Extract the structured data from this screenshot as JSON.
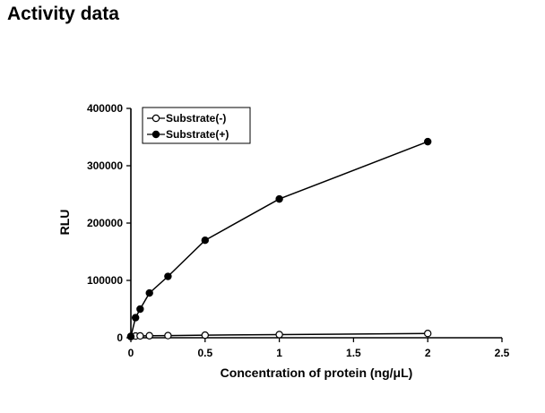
{
  "page": {
    "title": "Activity data"
  },
  "chart_data": {
    "type": "line",
    "title": "",
    "xlabel": "Concentration of protein (ng/μL)",
    "ylabel": "RLU",
    "xlim": [
      0,
      2.5
    ],
    "ylim": [
      0,
      400000
    ],
    "xticks": [
      0,
      0.5,
      1,
      1.5,
      2,
      2.5
    ],
    "xtick_labels": [
      "0",
      "0.5",
      "1",
      "1.5",
      "2",
      "2.5"
    ],
    "yticks": [
      0,
      100000,
      200000,
      300000,
      400000
    ],
    "ytick_labels": [
      "0",
      "100000",
      "200000",
      "300000",
      "400000"
    ],
    "grid": false,
    "legend_position": "top-left",
    "series": [
      {
        "name": "Substrate(-)",
        "marker": "open-circle",
        "color": "#000000",
        "x": [
          0,
          0.03125,
          0.0625,
          0.125,
          0.25,
          0.5,
          1,
          2
        ],
        "y": [
          2500,
          3000,
          3200,
          3500,
          3800,
          4500,
          5500,
          7500
        ]
      },
      {
        "name": "Substrate(+)",
        "marker": "filled-circle",
        "color": "#000000",
        "x": [
          0,
          0.03125,
          0.0625,
          0.125,
          0.25,
          0.5,
          1,
          2
        ],
        "y": [
          2000,
          35000,
          50000,
          78000,
          107000,
          170000,
          242000,
          342000
        ]
      }
    ]
  }
}
